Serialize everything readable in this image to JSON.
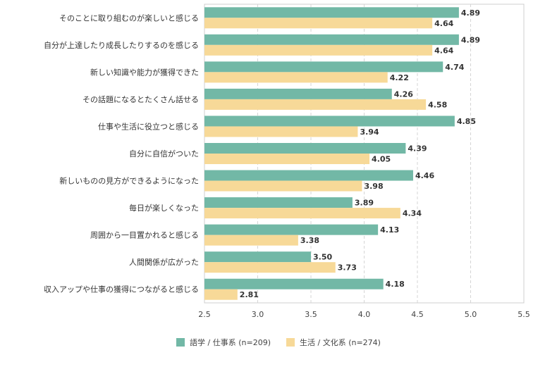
{
  "chart_data": {
    "type": "bar",
    "orientation": "horizontal",
    "categories": [
      "そのことに取り組むのが楽しいと感じる",
      "自分が上達したり成長したりするのを感じる",
      "新しい知識や能力が獲得できた",
      "その話題になるとたくさん話せる",
      "仕事や生活に役立つと感じる",
      "自分に自信がついた",
      "新しいものの見方ができるようになった",
      "毎日が楽しくなった",
      "周囲から一目置かれると感じる",
      "人間関係が広がった",
      "収入アップや仕事の獲得につながると感じる"
    ],
    "series": [
      {
        "name": "語学 / 仕事系 (n=209)",
        "color": "#72b8a6",
        "values": [
          4.89,
          4.89,
          4.74,
          4.26,
          4.85,
          4.39,
          4.46,
          3.89,
          4.13,
          3.5,
          4.18
        ]
      },
      {
        "name": "生活 / 文化系 (n=274)",
        "color": "#f7d998",
        "values": [
          4.64,
          4.64,
          4.22,
          4.58,
          3.94,
          4.05,
          3.98,
          4.34,
          3.38,
          3.73,
          2.81
        ]
      }
    ],
    "value_labels": [
      [
        "4.89",
        "4.89",
        "4.74",
        "4.26",
        "4.85",
        "4.39",
        "4.46",
        "3.89",
        "4.13",
        "3.50",
        "4.18"
      ],
      [
        "4.64",
        "4.64",
        "4.22",
        "4.58",
        "3.94",
        "4.05",
        "3.98",
        "4.34",
        "3.38",
        "3.73",
        "2.81"
      ]
    ],
    "xlim": [
      2.5,
      5.5
    ],
    "xticks": [
      "2.5",
      "3.0",
      "3.5",
      "4.0",
      "4.5",
      "5.0",
      "5.5"
    ],
    "grid": true,
    "legend_position": "bottom",
    "title": "",
    "xlabel": "",
    "ylabel": ""
  }
}
